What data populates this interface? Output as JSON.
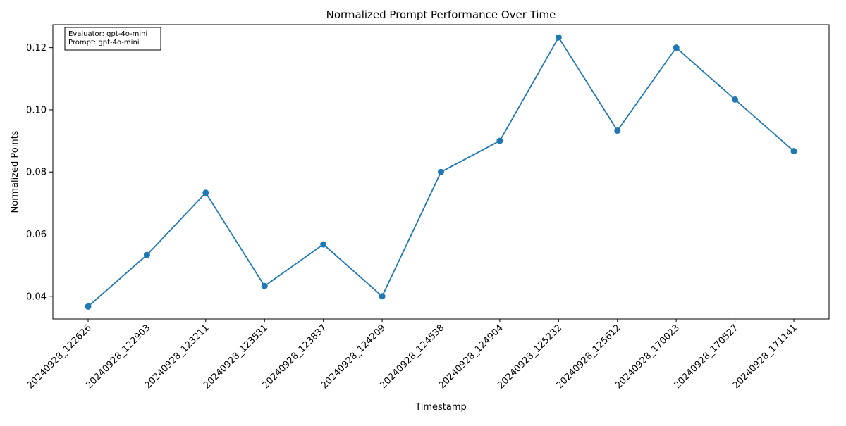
{
  "chart_data": {
    "type": "line",
    "title": "Normalized Prompt Performance Over Time",
    "xlabel": "Timestamp",
    "ylabel": "Normalized Points",
    "categories": [
      "20240928_122626",
      "20240928_122903",
      "20240928_123211",
      "20240928_123531",
      "20240928_123837",
      "20240928_124209",
      "20240928_124538",
      "20240928_124904",
      "20240928_125232",
      "20240928_125612",
      "20240928_170023",
      "20240928_170527",
      "20240928_171141"
    ],
    "series": [
      {
        "values": [
          0.0367,
          0.0533,
          0.0733,
          0.0433,
          0.0567,
          0.04,
          0.08,
          0.09,
          0.1233,
          0.0933,
          0.12,
          0.1033,
          0.0867
        ]
      }
    ],
    "ylim": [
      0.0327,
      0.1274
    ],
    "yticks": [
      0.04,
      0.06,
      0.08,
      0.1,
      0.12
    ],
    "ytick_labels": [
      "0.04",
      "0.06",
      "0.08",
      "0.10",
      "0.12"
    ],
    "grid": false,
    "line_color": "#1f77b4",
    "annotation": {
      "lines": [
        "Evaluator: gpt-4o-mini",
        "Prompt: gpt-4o-mini"
      ],
      "placement": "top-left"
    }
  }
}
